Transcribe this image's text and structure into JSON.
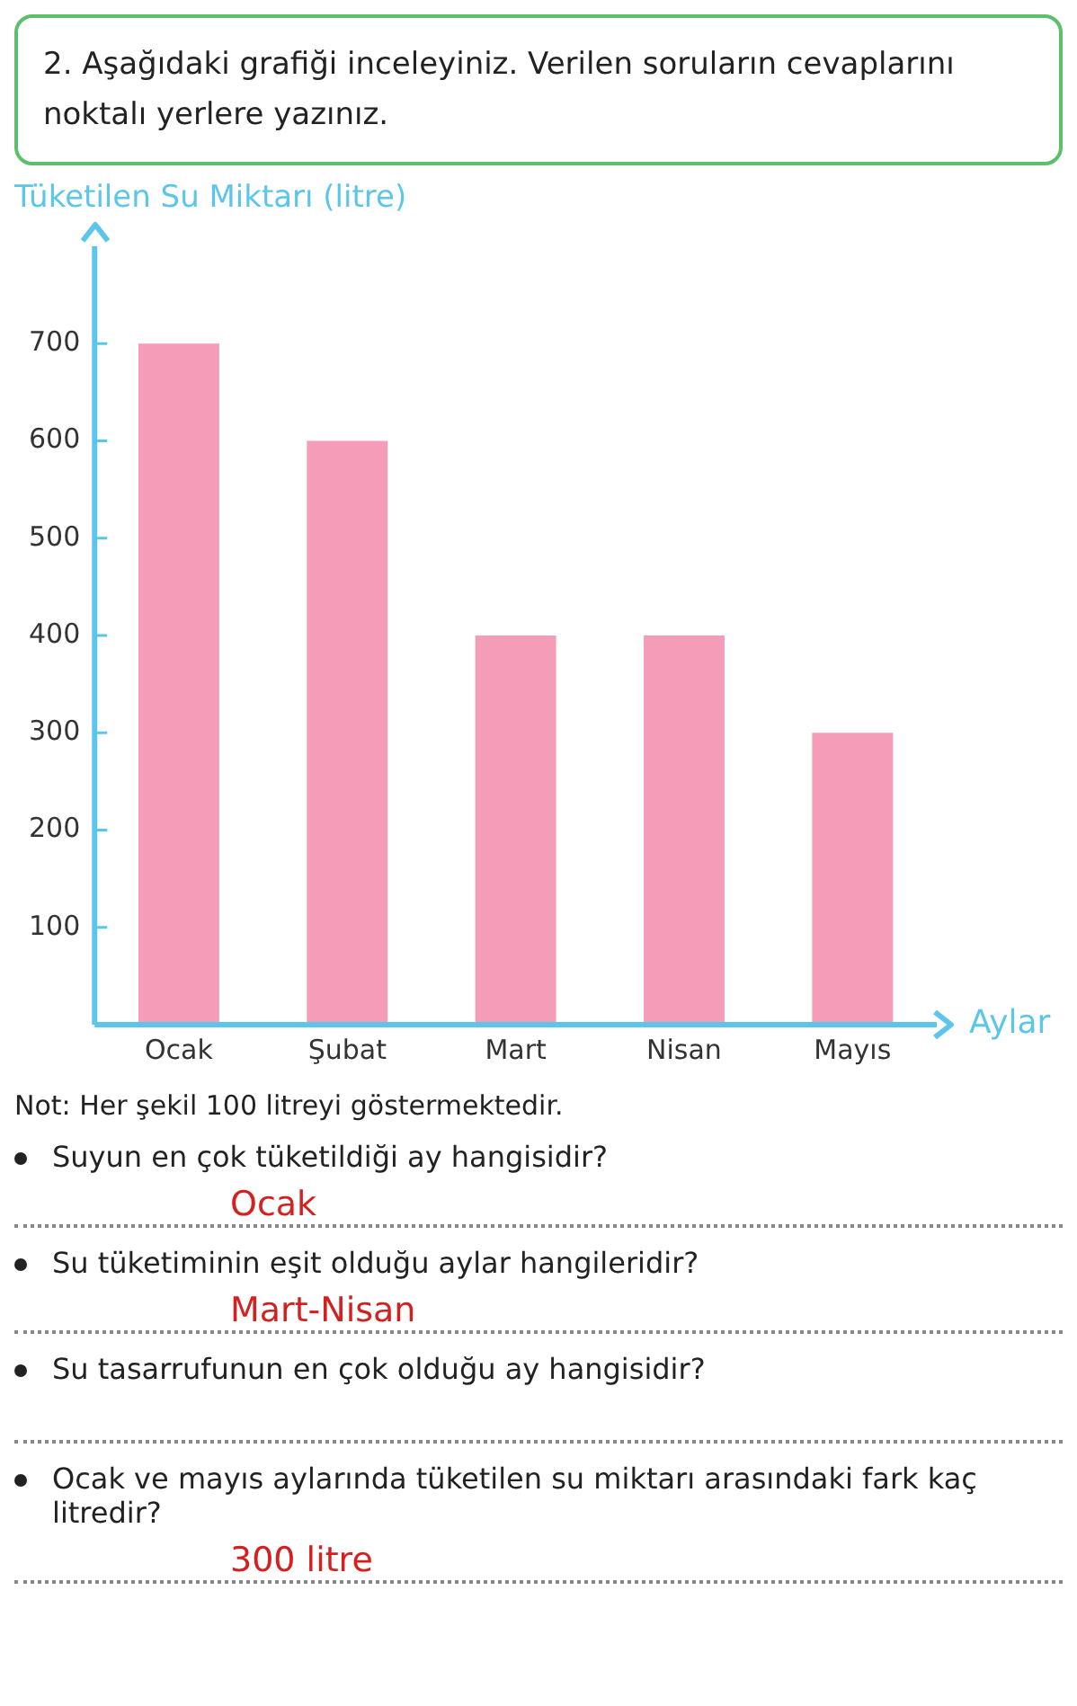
{
  "chart_data": {
    "type": "bar",
    "title": "2. Aşağıdaki grafiği inceleyiniz. Verilen soruların cevaplarını noktalı yerlere yazınız.",
    "ylabel": "Tüketilen Su Miktarı (litre)",
    "xlabel": "Aylar",
    "categories": [
      "Ocak",
      "Şubat",
      "Mart",
      "Nisan",
      "Mayıs"
    ],
    "values": [
      700,
      600,
      400,
      400,
      300
    ],
    "color": "#f59cb8",
    "ylim": [
      0,
      800
    ],
    "yticks": [
      100,
      200,
      300,
      400,
      500,
      600,
      700
    ],
    "grid": false,
    "legend": false,
    "annotations": [
      "Not: Her şekil 100 litreyi göstermektedir.",
      "Suyun en çok tüketildiği ay hangisidir?",
      "Ocak",
      "Su tüketiminin eşit olduğu aylar hangileridir?",
      "Mart-Nisan",
      "Su tasarrufunun en çok olduğu ay hangisidir?",
      "Ocak ve mayıs aylarında tüketilen su miktarı arasındaki fark kaç litredir?",
      "300 litre"
    ]
  }
}
